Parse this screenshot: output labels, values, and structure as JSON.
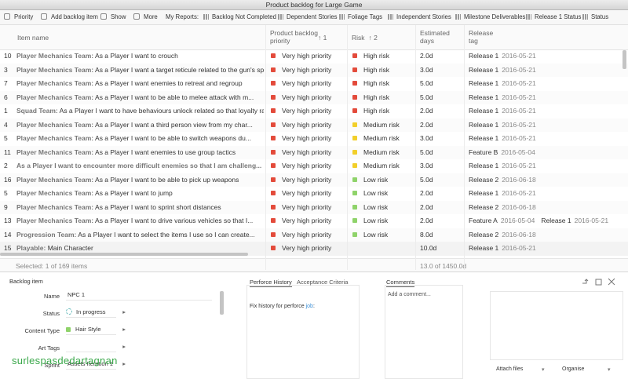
{
  "window": {
    "title": "Product backlog for Large Game"
  },
  "toolbar": {
    "actions": [
      "Priority",
      "Add backlog item",
      "Show",
      "More"
    ],
    "reports_label": "My Reports:",
    "reports": [
      "Backlog Not Completed",
      "Dependent Stories",
      "Foliage Tags",
      "Independent Stories",
      "Milestone Deliverables",
      "Release 1 Status",
      "Status"
    ]
  },
  "table": {
    "columns": {
      "name": "Item name",
      "priority": {
        "label": "Product backlog priority",
        "sort": "↑ 1"
      },
      "risk": {
        "label": "Risk",
        "sort": "↑ 2"
      },
      "estimate": "Estimated days",
      "release": "Release tag"
    },
    "level_colors": {
      "Very high priority": "#e34b3b",
      "High risk": "#e34b3b",
      "Medium risk": "#f2cf2a",
      "Low risk": "#8fd36a"
    },
    "rows": [
      {
        "id": "10",
        "team": "Player Mechanics Team:",
        "text": "As a Player I want to crouch",
        "priority": "Very high priority",
        "risk": "High risk",
        "estimate": "2.0d",
        "tags": [
          {
            "name": "Release 1",
            "date": "2016-05-21"
          }
        ]
      },
      {
        "id": "3",
        "team": "Player Mechanics Team:",
        "text": "As a Player I want a target reticule related to the gun's spre...",
        "priority": "Very high priority",
        "risk": "High risk",
        "estimate": "3.0d",
        "tags": [
          {
            "name": "Release 1",
            "date": "2016-05-21"
          }
        ]
      },
      {
        "id": "7",
        "team": "Player Mechanics Team:",
        "text": "As a Player I want enemies to retreat and regroup",
        "priority": "Very high priority",
        "risk": "High risk",
        "estimate": "5.0d",
        "tags": [
          {
            "name": "Release 1",
            "date": "2016-05-21"
          }
        ]
      },
      {
        "id": "6",
        "team": "Player Mechanics Team:",
        "text": "As a Player I want to be able to melee attack with m...",
        "priority": "Very high priority",
        "risk": "High risk",
        "estimate": "5.0d",
        "tags": [
          {
            "name": "Release 1",
            "date": "2016-05-21"
          }
        ]
      },
      {
        "id": "1",
        "team": "Squad Team:",
        "text": "As a Player I want to have behaviours unlock related so that loyalty rat...",
        "priority": "Very high priority",
        "risk": "High risk",
        "estimate": "2.0d",
        "tags": [
          {
            "name": "Release 1",
            "date": "2016-05-21"
          }
        ]
      },
      {
        "id": "4",
        "team": "Player Mechanics Team:",
        "text": "As a Player I want a third person view from my char...",
        "priority": "Very high priority",
        "risk": "Medium risk",
        "estimate": "2.0d",
        "tags": [
          {
            "name": "Release 1",
            "date": "2016-05-21"
          }
        ]
      },
      {
        "id": "5",
        "team": "Player Mechanics Team:",
        "text": "As a Player I want to be able to switch weapons du...",
        "priority": "Very high priority",
        "risk": "Medium risk",
        "estimate": "3.0d",
        "tags": [
          {
            "name": "Release 1",
            "date": "2016-05-21"
          }
        ]
      },
      {
        "id": "11",
        "team": "Player Mechanics Team:",
        "text": "As a Player I want enemies to use group tactics",
        "priority": "Very high priority",
        "risk": "Medium risk",
        "estimate": "5.0d",
        "tags": [
          {
            "name": "Feature B",
            "date": "2016-05-04"
          }
        ]
      },
      {
        "id": "2",
        "team": "As a Player I want to encounter more difficult enemies so that I am challeng...",
        "priority": "Very high priority",
        "risk": "Medium risk",
        "estimate": "3.0d",
        "tags": [
          {
            "name": "Release 1",
            "date": "2016-05-21"
          }
        ]
      },
      {
        "id": "16",
        "team": "Player Mechanics Team:",
        "text": "As a Player I want to be able to pick up weapons",
        "priority": "Very high priority",
        "risk": "Low risk",
        "estimate": "5.0d",
        "tags": [
          {
            "name": "Release 2",
            "date": "2016-06-18"
          }
        ]
      },
      {
        "id": "5",
        "team": "Player Mechanics Team:",
        "text": "As a Player I want to jump",
        "priority": "Very high priority",
        "risk": "Low risk",
        "estimate": "2.0d",
        "tags": [
          {
            "name": "Release 1",
            "date": "2016-05-21"
          }
        ]
      },
      {
        "id": "9",
        "team": "Player Mechanics Team:",
        "text": "As a Player I want to sprint short distances",
        "priority": "Very high priority",
        "risk": "Low risk",
        "estimate": "2.0d",
        "tags": [
          {
            "name": "Release 2",
            "date": "2016-06-18"
          }
        ]
      },
      {
        "id": "13",
        "team": "Player Mechanics Team:",
        "text": "As a Player I want to drive various vehicles so that I...",
        "priority": "Very high priority",
        "risk": "Low risk",
        "estimate": "2.0d",
        "tags": [
          {
            "name": "Feature A",
            "date": "2016-05-04"
          },
          {
            "name": "Release 1",
            "date": "2016-05-21"
          }
        ]
      },
      {
        "id": "14",
        "team": "Progression Team:",
        "text": "As a Player I want to select the items I use so I can create...",
        "priority": "Very high priority",
        "risk": "Low risk",
        "estimate": "8.0d",
        "tags": [
          {
            "name": "Release 2",
            "date": "2016-06-18"
          }
        ]
      },
      {
        "id": "15",
        "team": "Playable:",
        "text": "Main Character",
        "priority": "Very high priority",
        "estimate": "10.0d",
        "tags": [
          {
            "name": "Release 1",
            "date": "2016-05-21"
          }
        ]
      }
    ],
    "footer": {
      "selection": "Selected: 1 of 169 items",
      "total": "13.0 of 1450.0d"
    }
  },
  "detail": {
    "heading": "Backlog item",
    "fields": [
      {
        "label": "Name",
        "value": "NPC 1"
      },
      {
        "label": "Status",
        "value": "In progress"
      },
      {
        "label": "Content Type",
        "value": "Hair Style"
      },
      {
        "label": "Art Tags"
      },
      {
        "label": "Sprint",
        "value": "Assets Iteration 1"
      }
    ],
    "tabs": [
      "Perforce History",
      "Acceptance Criteria"
    ],
    "history": {
      "text": "Fix history for perforce",
      "link": "job",
      "suffix": ":"
    },
    "comments": {
      "tab": "Comments",
      "placeholder": "Add a comment..."
    },
    "buttons": [
      "Attach files",
      "Organise"
    ]
  },
  "watermark": "surlespasdedartagnan"
}
